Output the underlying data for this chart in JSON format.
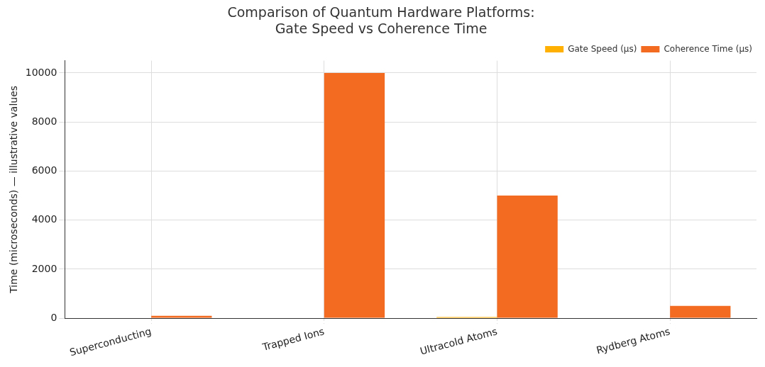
{
  "chart_data": {
    "type": "bar",
    "title": "Comparison of Quantum Hardware Platforms:\nGate Speed vs Coherence Time",
    "ylabel": "Time (microseconds) — illustrative values",
    "categories": [
      "Superconducting",
      "Trapped Ions",
      "Ultracold Atoms",
      "Rydberg Atoms"
    ],
    "series": [
      {
        "name": "Gate Speed (µs)",
        "color": "#ffb000",
        "values": [
          0,
          0,
          50,
          0
        ]
      },
      {
        "name": "Coherence Time (µs)",
        "color": "#f26b21",
        "values": [
          100,
          10000,
          5000,
          500
        ]
      }
    ],
    "ylim": [
      0,
      10500
    ],
    "yticks": [
      0,
      2000,
      4000,
      6000,
      8000,
      10000
    ],
    "grid": true,
    "legend": "top right"
  }
}
